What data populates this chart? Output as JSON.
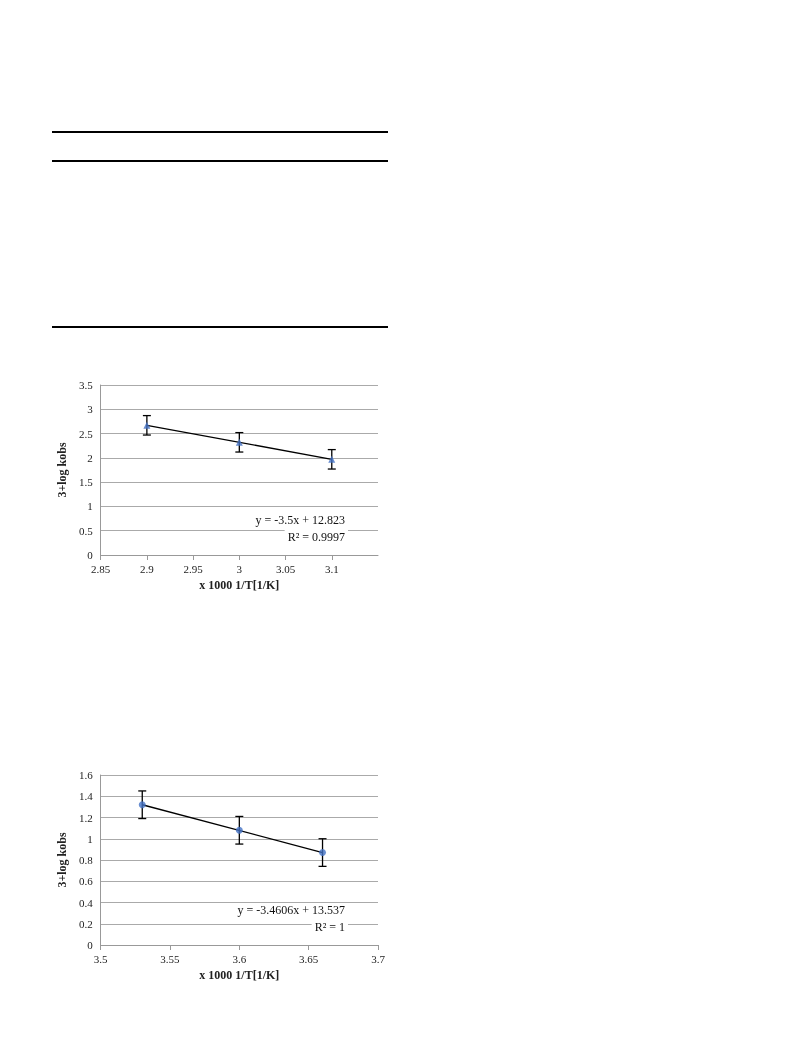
{
  "chart_data": [
    {
      "type": "scatter",
      "xlabel": "x 1000 1/T[1/K]",
      "ylabel": "3+log kobs",
      "marker": "triangle",
      "grid": "y",
      "xlim": [
        2.85,
        3.15
      ],
      "xticks": [
        2.85,
        2.9,
        2.95,
        3,
        3.05,
        3.1
      ],
      "ylim": [
        0,
        3.5
      ],
      "yticks": [
        0,
        0.5,
        1,
        1.5,
        2,
        2.5,
        3,
        3.5
      ],
      "annotations": [
        "y = -3.5x + 12.823",
        "R² = 0.9997"
      ],
      "series": [
        {
          "color": "#4472c4",
          "x": [
            2.9,
            3,
            3.1
          ],
          "values": [
            2.67,
            2.32,
            1.97
          ],
          "errors": [
            0.2,
            0.2,
            0.2
          ]
        },
        {
          "type": "line",
          "marker": "none",
          "color": "#000000",
          "x": [
            2.9,
            3.1
          ],
          "values": [
            2.67,
            1.97
          ]
        }
      ]
    },
    {
      "type": "scatter",
      "xlabel": "x 1000 1/T[1/K]",
      "ylabel": "3+log kobs",
      "marker": "circle",
      "grid": "y",
      "xlim": [
        3.5,
        3.7
      ],
      "xticks": [
        3.5,
        3.55,
        3.6,
        3.65,
        3.7
      ],
      "ylim": [
        0,
        1.6
      ],
      "yticks": [
        0,
        0.2,
        0.4,
        0.6,
        0.8,
        1,
        1.2,
        1.4,
        1.6
      ],
      "annotations": [
        "y = -3.4606x + 13.537",
        "R² = 1"
      ],
      "series": [
        {
          "color": "#4472c4",
          "x": [
            3.53,
            3.6,
            3.66
          ],
          "values": [
            1.32,
            1.08,
            0.87
          ],
          "errors": [
            0.13,
            0.13,
            0.13
          ]
        },
        {
          "type": "line",
          "marker": "none",
          "color": "#000000",
          "x": [
            3.53,
            3.66
          ],
          "values": [
            1.32,
            0.87
          ]
        }
      ]
    }
  ]
}
